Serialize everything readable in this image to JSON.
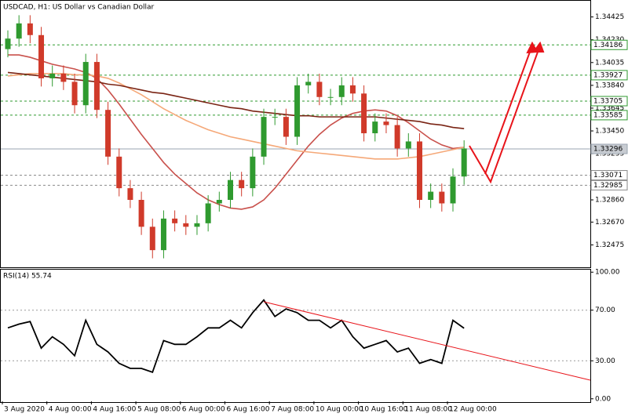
{
  "chart_data": [
    {
      "type": "candlestick",
      "title": "USDCAD, H1:  US Dollar vs Canadian Dollar",
      "categories": [
        "3 Aug 2020",
        null,
        null,
        null,
        "4 Aug 00:00",
        null,
        null,
        null,
        "4 Aug 16:00",
        null,
        null,
        null,
        "5 Aug 08:00",
        null,
        null,
        null,
        "6 Aug 00:00",
        null,
        null,
        null,
        "6 Aug 16:00",
        null,
        null,
        null,
        "7 Aug 08:00",
        null,
        null,
        null,
        "10 Aug 00:00",
        null,
        null,
        null,
        "10 Aug 16:00",
        null,
        null,
        null,
        "11 Aug 08:00",
        null,
        null,
        null,
        "12 Aug 00:00",
        null
      ],
      "open": [
        1.3415,
        1.3424,
        1.3437,
        1.3427,
        1.339,
        1.3394,
        1.3387,
        1.3367,
        1.3404,
        1.3363,
        1.3323,
        1.3296,
        1.3286,
        1.3263,
        1.3243,
        1.327,
        1.3266,
        1.3263,
        1.3266,
        1.3283,
        1.3286,
        1.3303,
        1.3296,
        1.3323,
        1.3357,
        1.3357,
        1.334,
        1.3384,
        1.3387,
        1.3374,
        1.3374,
        1.3384,
        1.3377,
        1.3343,
        1.3353,
        1.335,
        1.333,
        1.3336,
        1.3286,
        1.3293,
        1.3283,
        1.3306
      ],
      "high": [
        1.3431,
        1.3444,
        1.3444,
        1.3434,
        1.3401,
        1.3401,
        1.3394,
        1.3411,
        1.3411,
        1.337,
        1.333,
        1.3303,
        1.3293,
        1.327,
        1.3277,
        1.3277,
        1.3273,
        1.3273,
        1.329,
        1.3293,
        1.331,
        1.331,
        1.333,
        1.3364,
        1.3364,
        1.3364,
        1.3391,
        1.3394,
        1.3394,
        1.3381,
        1.3391,
        1.3391,
        1.3384,
        1.336,
        1.336,
        1.3357,
        1.3343,
        1.3343,
        1.33,
        1.33,
        1.3313,
        1.3337
      ],
      "low": [
        1.3408,
        1.3417,
        1.342,
        1.3383,
        1.3383,
        1.338,
        1.336,
        1.336,
        1.3356,
        1.3316,
        1.3289,
        1.3279,
        1.3256,
        1.3236,
        1.3236,
        1.3259,
        1.3256,
        1.3256,
        1.3259,
        1.3276,
        1.3279,
        1.3289,
        1.3289,
        1.3316,
        1.335,
        1.3333,
        1.3333,
        1.3377,
        1.3367,
        1.3367,
        1.3367,
        1.337,
        1.3336,
        1.3336,
        1.3343,
        1.3323,
        1.3323,
        1.3279,
        1.3279,
        1.3276,
        1.3276,
        1.3299
      ],
      "close": [
        1.3424,
        1.3437,
        1.3427,
        1.339,
        1.3394,
        1.3387,
        1.3367,
        1.3404,
        1.3363,
        1.3323,
        1.3296,
        1.3286,
        1.3263,
        1.3243,
        1.327,
        1.3266,
        1.3263,
        1.3266,
        1.3283,
        1.3286,
        1.3303,
        1.3296,
        1.3323,
        1.3357,
        1.3357,
        1.334,
        1.3384,
        1.3387,
        1.3374,
        1.3374,
        1.3384,
        1.3377,
        1.3343,
        1.3353,
        1.335,
        1.333,
        1.3336,
        1.3286,
        1.3293,
        1.3283,
        1.3306,
        1.333
      ],
      "up_color": "#2f9a2f",
      "down_color": "#d03a2a",
      "series": [
        {
          "color": "#c9514c",
          "values": [
            1.341,
            1.341,
            1.3408,
            1.3405,
            1.3402,
            1.34,
            1.3398,
            1.3395,
            1.339,
            1.338,
            1.3368,
            1.3355,
            1.3342,
            1.333,
            1.3318,
            1.3308,
            1.33,
            1.3292,
            1.3286,
            1.3282,
            1.3279,
            1.3278,
            1.328,
            1.3286,
            1.3296,
            1.3308,
            1.332,
            1.3332,
            1.3342,
            1.335,
            1.3356,
            1.336,
            1.3362,
            1.3363,
            1.3362,
            1.3358,
            1.3352,
            1.3345,
            1.3338,
            1.3333,
            1.333,
            1.3331
          ]
        },
        {
          "color": "#f5a878",
          "values": [
            1.3392,
            1.3393,
            1.3394,
            1.3394,
            1.3394,
            1.3394,
            1.3393,
            1.3393,
            1.3392,
            1.339,
            1.3386,
            1.3381,
            1.3376,
            1.337,
            1.3364,
            1.3359,
            1.3354,
            1.335,
            1.3346,
            1.3343,
            1.334,
            1.3338,
            1.3336,
            1.3334,
            1.3332,
            1.333,
            1.3328,
            1.3327,
            1.3326,
            1.3325,
            1.3324,
            1.3323,
            1.3322,
            1.3321,
            1.3321,
            1.3321,
            1.3322,
            1.3323,
            1.3325,
            1.3327,
            1.3329,
            1.3331
          ]
        },
        {
          "color": "#7a2414",
          "values": [
            1.3395,
            1.3394,
            1.3393,
            1.3392,
            1.3391,
            1.339,
            1.3389,
            1.3388,
            1.3387,
            1.3385,
            1.3384,
            1.3382,
            1.338,
            1.3378,
            1.3377,
            1.3375,
            1.3373,
            1.3371,
            1.3369,
            1.3367,
            1.3365,
            1.3364,
            1.3362,
            1.3361,
            1.336,
            1.3359,
            1.3358,
            1.3358,
            1.3357,
            1.3357,
            1.3357,
            1.3357,
            1.3357,
            1.3357,
            1.3356,
            1.3355,
            1.3354,
            1.3353,
            1.3351,
            1.335,
            1.3348,
            1.3347
          ]
        }
      ],
      "ylim": [
        1.3229,
        1.3455
      ],
      "yticks": [
        {
          "value": 1.34425,
          "label": "1.34425"
        },
        {
          "value": 1.3423,
          "label": "1.34230"
        },
        {
          "value": 1.34035,
          "label": "1.34035"
        },
        {
          "value": 1.3384,
          "label": "1.33840"
        },
        {
          "value": 1.33645,
          "label": "1.33645"
        },
        {
          "value": 1.3345,
          "label": "1.33450"
        },
        {
          "value": 1.33255,
          "label": "1.33255"
        },
        {
          "value": 1.3286,
          "label": "1.32860"
        },
        {
          "value": 1.3267,
          "label": "1.32670"
        },
        {
          "value": 1.32475,
          "label": "1.32475"
        }
      ],
      "levels": [
        {
          "value": 1.34186,
          "color": "#2f9a2f"
        },
        {
          "value": 1.33927,
          "color": "#2f9a2f"
        },
        {
          "value": 1.33705,
          "color": "#2f9a2f"
        },
        {
          "value": 1.33585,
          "color": "#2f9a2f"
        },
        {
          "value": 1.33296,
          "color": "#9aa4b0"
        },
        {
          "value": 1.33071,
          "color": "#8a8a8a"
        },
        {
          "value": 1.32985,
          "color": "#8a8a8a"
        }
      ]
    },
    {
      "type": "line",
      "title": "RSI(14) 55.74",
      "color": "#000000",
      "values": [
        56,
        59,
        61,
        40,
        49,
        43,
        34,
        62,
        43,
        37,
        28,
        24,
        24,
        21,
        46,
        43,
        43,
        49,
        56,
        56,
        62,
        56,
        68,
        78,
        65,
        71,
        68,
        62,
        62,
        56,
        62,
        49,
        40,
        43,
        46,
        37,
        40,
        28,
        31,
        28,
        62,
        55.74
      ],
      "ylim": [
        -2,
        102
      ],
      "yticks": [
        {
          "value": 100,
          "label": "100.00"
        },
        {
          "value": 70,
          "label": "70.00"
        },
        {
          "value": 30,
          "label": "30.00"
        },
        {
          "value": 0,
          "label": "0.00"
        }
      ],
      "levels": [
        70,
        30
      ]
    }
  ]
}
